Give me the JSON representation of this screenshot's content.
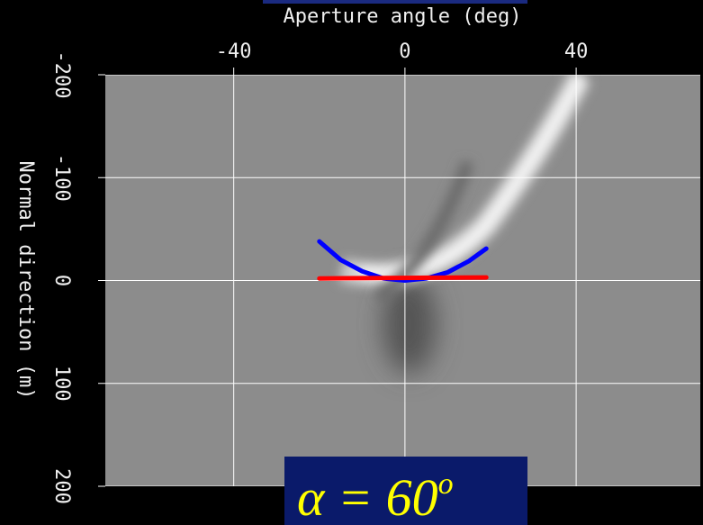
{
  "chart_data": {
    "type": "image-plot",
    "xlabel": "Aperture angle (deg)",
    "ylabel": "Normal direction (m)",
    "xlim": [
      -70,
      69
    ],
    "xticks": [
      -40,
      0,
      40
    ],
    "ylim": [
      -200,
      200
    ],
    "yticks": [
      -200,
      -100,
      0,
      100,
      200
    ],
    "grid": true,
    "series": [
      {
        "color": "#0000ff",
        "x": [
          -20,
          -15,
          -10,
          -5,
          0,
          5,
          10,
          15,
          19
        ],
        "values": [
          -38,
          -20,
          -9,
          -2,
          0,
          -2,
          -8,
          -19,
          -31
        ]
      },
      {
        "color": "#ff0000",
        "x": [
          -20,
          19
        ],
        "values": [
          -2,
          -3
        ]
      }
    ],
    "annotation": "α = 60",
    "annotation_superscript": "o"
  }
}
